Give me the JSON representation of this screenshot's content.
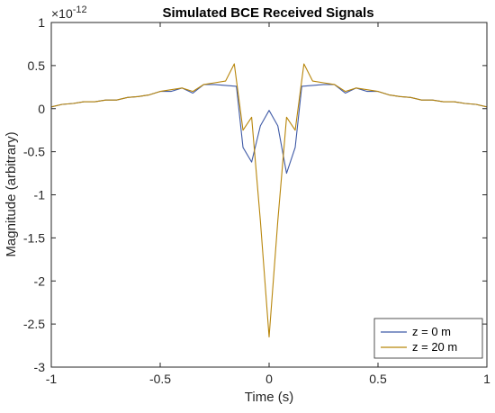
{
  "chart_data": {
    "type": "line",
    "title": "Simulated BCE Received Signals",
    "xlabel": "Time (s)",
    "ylabel": "Magnitude (arbitrary)",
    "y_exponent_label": "×10",
    "y_exponent_power": "-12",
    "xlim": [
      -1,
      1
    ],
    "ylim": [
      -3,
      1
    ],
    "x_ticks": [
      -1,
      -0.5,
      0,
      0.5,
      1
    ],
    "x_tick_labels": [
      "-1",
      "-0.5",
      "0",
      "0.5",
      "1"
    ],
    "y_ticks": [
      1,
      0.5,
      0,
      -0.5,
      -1,
      -1.5,
      -2,
      -2.5,
      -3
    ],
    "y_tick_labels": [
      "1",
      "0.5",
      "0",
      "-0.5",
      "-1",
      "-1.5",
      "-2",
      "-2.5",
      "-3"
    ],
    "grid": false,
    "legend_position": "bottom-right",
    "series": [
      {
        "name": "z = 0 m",
        "color": "#3f5aa6",
        "points": [
          [
            -1.0,
            0.02
          ],
          [
            -0.95,
            0.05
          ],
          [
            -0.9,
            0.06
          ],
          [
            -0.85,
            0.08
          ],
          [
            -0.8,
            0.08
          ],
          [
            -0.75,
            0.1
          ],
          [
            -0.7,
            0.1
          ],
          [
            -0.65,
            0.13
          ],
          [
            -0.6,
            0.14
          ],
          [
            -0.55,
            0.16
          ],
          [
            -0.5,
            0.2
          ],
          [
            -0.45,
            0.2
          ],
          [
            -0.4,
            0.24
          ],
          [
            -0.35,
            0.18
          ],
          [
            -0.3,
            0.28
          ],
          [
            -0.25,
            0.28
          ],
          [
            -0.2,
            0.27
          ],
          [
            -0.15,
            0.26
          ],
          [
            -0.12,
            -0.45
          ],
          [
            -0.08,
            -0.62
          ],
          [
            -0.04,
            -0.2
          ],
          [
            0.0,
            -0.02
          ],
          [
            0.04,
            -0.2
          ],
          [
            0.08,
            -0.75
          ],
          [
            0.12,
            -0.45
          ],
          [
            0.15,
            0.26
          ],
          [
            0.2,
            0.27
          ],
          [
            0.25,
            0.28
          ],
          [
            0.3,
            0.28
          ],
          [
            0.35,
            0.18
          ],
          [
            0.4,
            0.24
          ],
          [
            0.45,
            0.2
          ],
          [
            0.5,
            0.2
          ],
          [
            0.55,
            0.16
          ],
          [
            0.6,
            0.14
          ],
          [
            0.65,
            0.13
          ],
          [
            0.7,
            0.1
          ],
          [
            0.75,
            0.1
          ],
          [
            0.8,
            0.08
          ],
          [
            0.85,
            0.08
          ],
          [
            0.9,
            0.06
          ],
          [
            0.95,
            0.05
          ],
          [
            1.0,
            0.02
          ]
        ]
      },
      {
        "name": "z = 20 m",
        "color": "#b8860b",
        "points": [
          [
            -1.0,
            0.02
          ],
          [
            -0.95,
            0.05
          ],
          [
            -0.9,
            0.06
          ],
          [
            -0.85,
            0.08
          ],
          [
            -0.8,
            0.08
          ],
          [
            -0.75,
            0.1
          ],
          [
            -0.7,
            0.1
          ],
          [
            -0.65,
            0.13
          ],
          [
            -0.6,
            0.14
          ],
          [
            -0.55,
            0.16
          ],
          [
            -0.5,
            0.2
          ],
          [
            -0.45,
            0.22
          ],
          [
            -0.4,
            0.24
          ],
          [
            -0.35,
            0.2
          ],
          [
            -0.3,
            0.28
          ],
          [
            -0.25,
            0.3
          ],
          [
            -0.2,
            0.32
          ],
          [
            -0.16,
            0.52
          ],
          [
            -0.12,
            -0.25
          ],
          [
            -0.08,
            -0.1
          ],
          [
            -0.04,
            -1.3
          ],
          [
            0.0,
            -2.65
          ],
          [
            0.04,
            -1.3
          ],
          [
            0.08,
            -0.1
          ],
          [
            0.12,
            -0.25
          ],
          [
            0.16,
            0.52
          ],
          [
            0.2,
            0.32
          ],
          [
            0.25,
            0.3
          ],
          [
            0.3,
            0.28
          ],
          [
            0.35,
            0.2
          ],
          [
            0.4,
            0.24
          ],
          [
            0.45,
            0.22
          ],
          [
            0.5,
            0.2
          ],
          [
            0.55,
            0.16
          ],
          [
            0.6,
            0.14
          ],
          [
            0.65,
            0.13
          ],
          [
            0.7,
            0.1
          ],
          [
            0.75,
            0.1
          ],
          [
            0.8,
            0.08
          ],
          [
            0.85,
            0.08
          ],
          [
            0.9,
            0.06
          ],
          [
            0.95,
            0.05
          ],
          [
            1.0,
            0.02
          ]
        ]
      }
    ]
  }
}
